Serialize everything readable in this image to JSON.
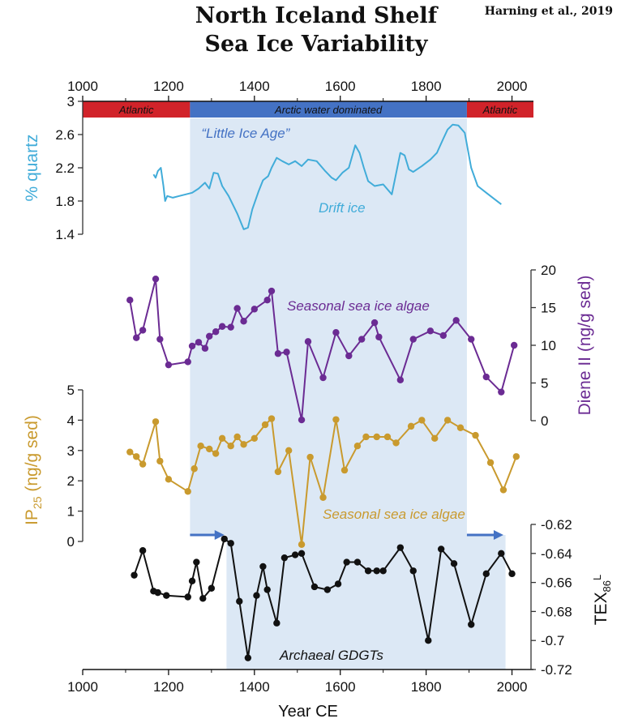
{
  "title_line1": "North Iceland Shelf",
  "title_line2": "Sea Ice Variability",
  "credit": "Harning et al., 2019",
  "colors": {
    "quartz": "#41acd9",
    "diene": "#6b2b93",
    "ip25": "#c99a2e",
    "tex": "#111111",
    "atlantic_bar": "#d1232a",
    "arctic_bar": "#4472c4",
    "lia_shade": "#dce8f5",
    "gdgt_shade": "#dce8f5",
    "arrow": "#4472c4"
  },
  "chart_data": {
    "type": "line",
    "x_axis": {
      "label": "Year CE",
      "range": [
        1000,
        2050
      ],
      "ticks": [
        "1000",
        "1200",
        "1400",
        "1600",
        "1800",
        "2000"
      ],
      "tick_values": [
        1000,
        1200,
        1400,
        1600,
        1800,
        2000
      ]
    },
    "periods": [
      {
        "label": "Atlantic",
        "start": 1000,
        "end": 1250,
        "color": "#d1232a"
      },
      {
        "label": "Arctic water dominated",
        "start": 1250,
        "end": 1895,
        "color": "#4472c4"
      },
      {
        "label": "Atlantic",
        "start": 1895,
        "end": 2050,
        "color": "#d1232a"
      }
    ],
    "shaded_regions": [
      {
        "label": "“Little Ice Age”",
        "start": 1250,
        "end": 1895
      },
      {
        "label": "",
        "start": 1335,
        "end": 1985
      }
    ],
    "arrows": [
      {
        "start": 1250,
        "end": 1330
      },
      {
        "start": 1895,
        "end": 1980
      }
    ],
    "panels": [
      {
        "id": "quartz",
        "ylabel": "% quartz",
        "annotation": "Drift ice",
        "axis_side": "left",
        "ylim": [
          1.4,
          3.0
        ],
        "ticks": [
          "1.4",
          "1.8",
          "2.2",
          "2.6",
          "3"
        ],
        "tick_values": [
          1.4,
          1.8,
          2.2,
          2.6,
          3.0
        ],
        "markers": false,
        "x": [
          1165,
          1170,
          1175,
          1182,
          1188,
          1192,
          1197,
          1210,
          1225,
          1240,
          1255,
          1270,
          1285,
          1295,
          1305,
          1315,
          1325,
          1340,
          1360,
          1375,
          1385,
          1395,
          1410,
          1420,
          1432,
          1440,
          1452,
          1465,
          1480,
          1495,
          1510,
          1525,
          1545,
          1565,
          1580,
          1590,
          1605,
          1620,
          1635,
          1645,
          1655,
          1665,
          1680,
          1700,
          1720,
          1740,
          1750,
          1760,
          1770,
          1790,
          1810,
          1825,
          1840,
          1850,
          1862,
          1875,
          1890,
          1905,
          1920,
          1940,
          1960,
          1975
        ],
        "y": [
          2.12,
          2.08,
          2.16,
          2.2,
          1.98,
          1.8,
          1.86,
          1.84,
          1.86,
          1.88,
          1.9,
          1.95,
          2.02,
          1.95,
          2.14,
          2.13,
          1.98,
          1.86,
          1.65,
          1.46,
          1.48,
          1.7,
          1.92,
          2.05,
          2.1,
          2.2,
          2.32,
          2.28,
          2.24,
          2.28,
          2.22,
          2.3,
          2.28,
          2.16,
          2.08,
          2.05,
          2.14,
          2.2,
          2.47,
          2.38,
          2.2,
          2.04,
          1.98,
          2.0,
          1.88,
          2.38,
          2.35,
          2.18,
          2.15,
          2.22,
          2.3,
          2.38,
          2.55,
          2.66,
          2.72,
          2.71,
          2.62,
          2.2,
          1.98,
          1.9,
          1.82,
          1.76
        ]
      },
      {
        "id": "diene",
        "ylabel": "Diene II (ng/g sed)",
        "annotation": "Seasonal sea ice algae",
        "axis_side": "right",
        "ylim": [
          0,
          20
        ],
        "ticks": [
          "0",
          "5",
          "10",
          "15",
          "20"
        ],
        "tick_values": [
          0,
          5,
          10,
          15,
          20
        ],
        "markers": true,
        "x": [
          1110,
          1125,
          1140,
          1170,
          1180,
          1200,
          1245,
          1255,
          1270,
          1285,
          1295,
          1310,
          1325,
          1345,
          1360,
          1375,
          1400,
          1430,
          1440,
          1455,
          1475,
          1510,
          1525,
          1560,
          1590,
          1620,
          1650,
          1680,
          1690,
          1740,
          1770,
          1810,
          1840,
          1870,
          1905,
          1940,
          1975,
          2005
        ],
        "y": [
          16,
          11,
          12,
          18.8,
          10.8,
          7.4,
          7.8,
          9.9,
          10.4,
          9.6,
          11.2,
          11.8,
          12.5,
          12.4,
          14.9,
          13.2,
          14.8,
          16,
          17.2,
          8.9,
          9.1,
          0.1,
          10.5,
          5.7,
          11.7,
          8.6,
          10.8,
          13.0,
          11.1,
          5.4,
          10.8,
          11.9,
          11.3,
          13.3,
          10.8,
          5.8,
          3.8,
          10.0
        ]
      },
      {
        "id": "ip25",
        "ylabel": "IP25 (ng/g sed)",
        "annotation": "Seasonal sea ice algae",
        "axis_side": "left",
        "ylim": [
          0,
          5
        ],
        "ticks": [
          "0",
          "1",
          "2",
          "3",
          "4",
          "5"
        ],
        "tick_values": [
          0,
          1,
          2,
          3,
          4,
          5
        ],
        "markers": true,
        "x": [
          1110,
          1125,
          1140,
          1170,
          1180,
          1200,
          1245,
          1260,
          1275,
          1295,
          1310,
          1325,
          1345,
          1360,
          1375,
          1400,
          1425,
          1440,
          1455,
          1480,
          1510,
          1530,
          1560,
          1590,
          1610,
          1640,
          1660,
          1685,
          1710,
          1730,
          1765,
          1790,
          1820,
          1850,
          1880,
          1915,
          1950,
          1980,
          2010
        ],
        "y": [
          2.95,
          2.8,
          2.55,
          3.95,
          2.65,
          2.05,
          1.65,
          2.4,
          3.15,
          3.05,
          2.9,
          3.4,
          3.15,
          3.45,
          3.2,
          3.4,
          3.85,
          4.05,
          2.3,
          3.0,
          -0.1,
          2.78,
          1.45,
          4.02,
          2.35,
          3.15,
          3.45,
          3.45,
          3.45,
          3.25,
          3.8,
          4.0,
          3.4,
          4.0,
          3.75,
          3.5,
          2.6,
          1.7,
          2.8
        ]
      },
      {
        "id": "tex",
        "ylabel": "TEX86L",
        "annotation": "Archaeal GDGTs",
        "axis_side": "right",
        "ylim": [
          -0.72,
          -0.62
        ],
        "ticks": [
          "-0.72",
          "-0.7",
          "-0.68",
          "-0.66",
          "-0.64",
          "-0.62"
        ],
        "tick_values": [
          -0.72,
          -0.7,
          -0.68,
          -0.66,
          -0.64,
          -0.62
        ],
        "markers": true,
        "x": [
          1120,
          1140,
          1165,
          1175,
          1195,
          1245,
          1255,
          1265,
          1280,
          1300,
          1330,
          1345,
          1365,
          1385,
          1405,
          1420,
          1430,
          1452,
          1470,
          1495,
          1510,
          1540,
          1570,
          1595,
          1615,
          1640,
          1665,
          1685,
          1700,
          1740,
          1770,
          1805,
          1835,
          1865,
          1905,
          1940,
          1975,
          2000
        ],
        "y": [
          -0.655,
          -0.638,
          -0.666,
          -0.667,
          -0.669,
          -0.67,
          -0.659,
          -0.646,
          -0.671,
          -0.664,
          -0.63,
          -0.633,
          -0.673,
          -0.712,
          -0.669,
          -0.649,
          -0.665,
          -0.688,
          -0.643,
          -0.641,
          -0.64,
          -0.663,
          -0.665,
          -0.661,
          -0.646,
          -0.646,
          -0.652,
          -0.652,
          -0.652,
          -0.636,
          -0.652,
          -0.7,
          -0.637,
          -0.647,
          -0.689,
          -0.654,
          -0.64,
          -0.654
        ]
      }
    ]
  }
}
